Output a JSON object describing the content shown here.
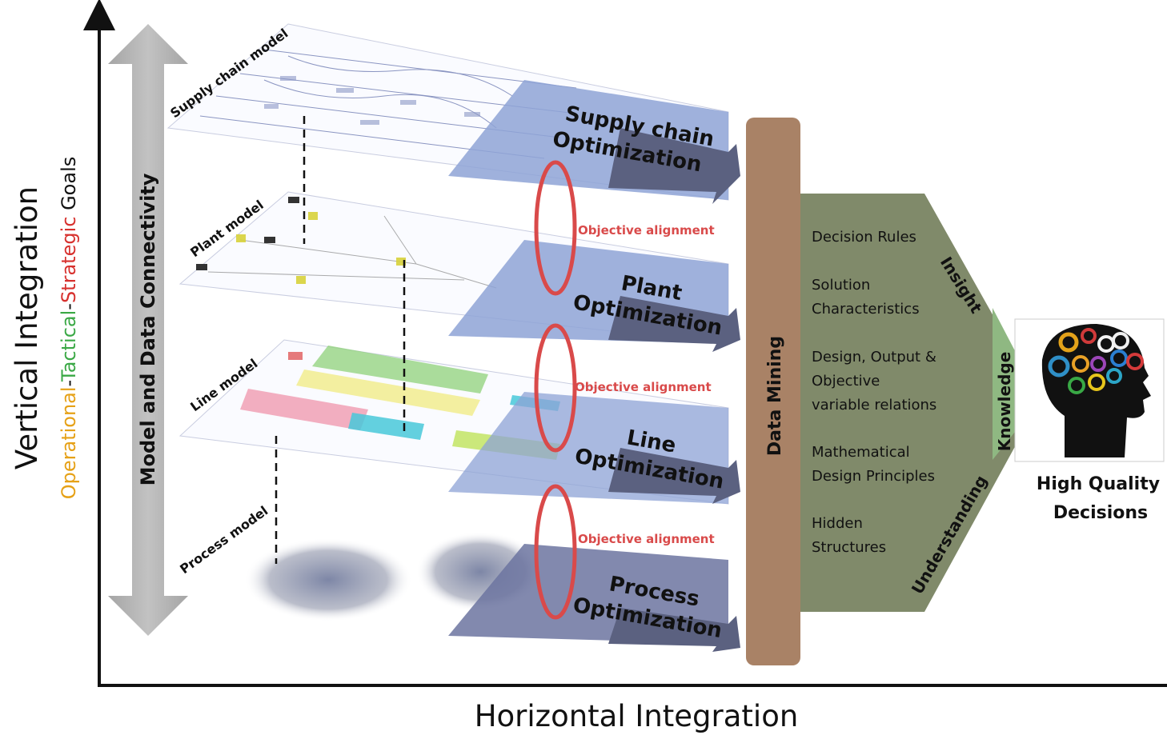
{
  "axes": {
    "horizontal_label": "Horizontal Integration",
    "vertical_label": "Vertical Integration",
    "goals": {
      "operational": "Operational",
      "sep1": "-",
      "tactical": "Tactical",
      "sep2": "-",
      "strategic": "Strategic",
      "suffix": " Goals"
    }
  },
  "connectivity_label": "Model and Data Connectivity",
  "layers": [
    {
      "model_label": "Supply chain model",
      "opt_line1": "Supply chain",
      "opt_line2": "Optimization"
    },
    {
      "model_label": "Plant model",
      "opt_line1": "Plant",
      "opt_line2": "Optimization"
    },
    {
      "model_label": "Line model",
      "opt_line1": "Line",
      "opt_line2": "Optimization"
    },
    {
      "model_label": "Process model",
      "opt_line1": "Process",
      "opt_line2": "Optimization"
    }
  ],
  "alignment_labels": [
    "Objective alignment",
    "Objective alignment",
    "Objective alignment"
  ],
  "data_mining_label": "Data Mining",
  "outcomes": [
    {
      "line1": "Decision Rules",
      "line2": ""
    },
    {
      "line1": "Solution",
      "line2": "Characteristics"
    },
    {
      "line1": "Design, Output &",
      "line2": "Objective",
      "line3": "variable relations"
    },
    {
      "line1": "Mathematical",
      "line2": "Design Principles"
    },
    {
      "line1": "Hidden",
      "line2": "Structures"
    }
  ],
  "arrow_words": {
    "insight": "Insight",
    "knowledge": "Knowledge",
    "understanding": "Understanding"
  },
  "decision_label": {
    "line1": "High Quality",
    "line2": "Decisions"
  },
  "colors": {
    "operational": "#e6a117",
    "tactical": "#3aa845",
    "strategic": "#d7312e",
    "data_mining": "#a98266",
    "outcome_arrow": "#808a6a",
    "alignment": "#d94a4a",
    "optimization_panel": "#8ea3d6",
    "optimization_shadow": "#5b6180"
  }
}
